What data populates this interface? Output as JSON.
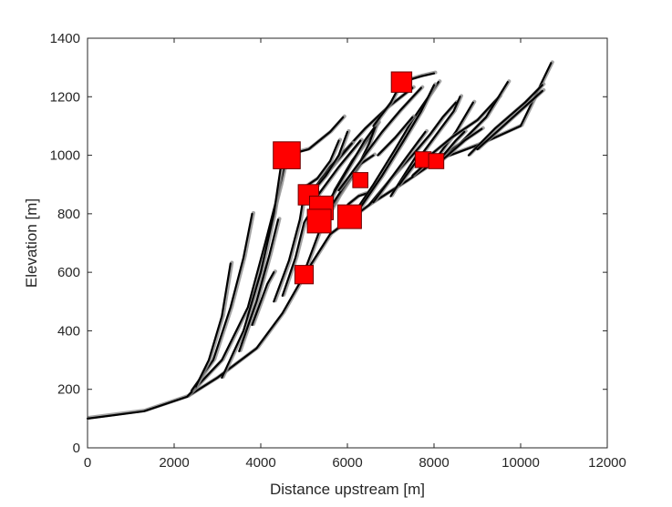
{
  "chart_data": {
    "type": "line",
    "title": "",
    "xlabel": "Distance upstream [m]",
    "ylabel": "Elevation [m]",
    "xlim": [
      0,
      12000
    ],
    "ylim": [
      0,
      1400
    ],
    "xticks": [
      0,
      2000,
      4000,
      6000,
      8000,
      10000,
      12000
    ],
    "yticks": [
      0,
      200,
      400,
      600,
      800,
      1000,
      1200,
      1400
    ],
    "grid": false,
    "legend": "none",
    "colors": {
      "profile": "#000000",
      "profile_shadow": "#8c8c8c",
      "marker_fill": "#ff0000",
      "marker_edge": "#6e0000"
    },
    "series": [
      {
        "x": [
          0,
          1300,
          2300,
          3000,
          3900,
          4500,
          5000,
          5600,
          6500,
          7400,
          8100,
          9100,
          10000,
          10700
        ],
        "y": [
          100,
          125,
          175,
          240,
          340,
          460,
          590,
          730,
          830,
          915,
          985,
          1040,
          1100,
          1315
        ]
      },
      {
        "x": [
          2300,
          3100,
          3700,
          4100,
          4450,
          4600
        ],
        "y": [
          175,
          300,
          480,
          700,
          900,
          1000
        ]
      },
      {
        "x": [
          4600,
          5100,
          5600,
          5900
        ],
        "y": [
          1000,
          1020,
          1080,
          1130
        ]
      },
      {
        "x": [
          2400,
          2900,
          3300,
          3600,
          3800
        ],
        "y": [
          195,
          300,
          480,
          650,
          800
        ]
      },
      {
        "x": [
          2500,
          2800,
          3100,
          3300
        ],
        "y": [
          210,
          300,
          450,
          630
        ]
      },
      {
        "x": [
          3100,
          3600,
          4000,
          4300,
          4500
        ],
        "y": [
          240,
          400,
          600,
          800,
          1000
        ]
      },
      {
        "x": [
          3500,
          3900,
          4200,
          4400
        ],
        "y": [
          330,
          500,
          660,
          780
        ]
      },
      {
        "x": [
          3800,
          4150,
          4300
        ],
        "y": [
          420,
          560,
          600
        ]
      },
      {
        "x": [
          4300,
          4650,
          4900,
          5000
        ],
        "y": [
          500,
          640,
          780,
          870
        ]
      },
      {
        "x": [
          4500,
          4800,
          5000,
          5200,
          5300
        ],
        "y": [
          520,
          650,
          770,
          820,
          860
        ]
      },
      {
        "x": [
          5000,
          5300,
          5700,
          6100,
          6600
        ],
        "y": [
          600,
          720,
          880,
          980,
          1080
        ]
      },
      {
        "x": [
          5300,
          5600,
          6000,
          6400,
          6700
        ],
        "y": [
          760,
          850,
          950,
          1050,
          1110
        ]
      },
      {
        "x": [
          5500,
          5800,
          6200,
          6500,
          6700
        ],
        "y": [
          780,
          860,
          950,
          1040,
          1120
        ]
      },
      {
        "x": [
          5600,
          5950,
          6300,
          6600
        ],
        "y": [
          820,
          900,
          970,
          1000
        ]
      },
      {
        "x": [
          6000,
          6250,
          6450
        ],
        "y": [
          830,
          860,
          870
        ]
      },
      {
        "x": [
          6100,
          6600,
          7100,
          7500,
          8100
        ],
        "y": [
          790,
          900,
          1020,
          1120,
          1250
        ]
      },
      {
        "x": [
          6200,
          6800,
          7300,
          7700,
          8000
        ],
        "y": [
          800,
          930,
          1050,
          1150,
          1240
        ]
      },
      {
        "x": [
          6500,
          7000,
          7500,
          7900,
          8200,
          8500
        ],
        "y": [
          830,
          920,
          1000,
          1070,
          1130,
          1180
        ]
      },
      {
        "x": [
          6600,
          7200,
          7600,
          7800
        ],
        "y": [
          840,
          960,
          1040,
          1080
        ]
      },
      {
        "x": [
          7000,
          7300,
          7600
        ],
        "y": [
          860,
          930,
          1000
        ]
      },
      {
        "x": [
          7200,
          7600,
          7900,
          8200,
          8450,
          8600
        ],
        "y": [
          900,
          980,
          1040,
          1100,
          1150,
          1200
        ]
      },
      {
        "x": [
          7500,
          7800,
          8100,
          8500,
          8900
        ],
        "y": [
          930,
          970,
          1000,
          1080,
          1180
        ]
      },
      {
        "x": [
          7750,
          8400,
          9000,
          9500
        ],
        "y": [
          980,
          1060,
          1120,
          1200
        ]
      },
      {
        "x": [
          8000,
          8600,
          9200,
          9700
        ],
        "y": [
          975,
          1040,
          1130,
          1250
        ]
      },
      {
        "x": [
          8100,
          8500,
          8700
        ],
        "y": [
          980,
          1050,
          1080
        ]
      },
      {
        "x": [
          8200,
          8700,
          9100
        ],
        "y": [
          985,
          1050,
          1090
        ]
      },
      {
        "x": [
          8800,
          9400,
          10100,
          10500
        ],
        "y": [
          1000,
          1090,
          1180,
          1240
        ]
      },
      {
        "x": [
          9000,
          9600,
          10500
        ],
        "y": [
          1020,
          1100,
          1220
        ]
      },
      {
        "x": [
          5200,
          5600,
          5900,
          6400,
          6900,
          7500
        ],
        "y": [
          880,
          960,
          1010,
          1090,
          1160,
          1230
        ]
      },
      {
        "x": [
          5400,
          5700,
          6100
        ],
        "y": [
          920,
          970,
          1040
        ]
      },
      {
        "x": [
          7250,
          7700,
          8000
        ],
        "y": [
          1250,
          1270,
          1280
        ]
      },
      {
        "x": [
          6600,
          7000,
          7250
        ],
        "y": [
          1100,
          1180,
          1250
        ]
      },
      {
        "x": [
          4900,
          5300,
          5600,
          5800
        ],
        "y": [
          880,
          920,
          980,
          1050
        ]
      },
      {
        "x": [
          5100,
          5500,
          5800,
          6000
        ],
        "y": [
          860,
          930,
          1000,
          1080
        ]
      },
      {
        "x": [
          5250,
          5800,
          6300
        ],
        "y": [
          850,
          960,
          1050
        ]
      },
      {
        "x": [
          5800,
          6300,
          6800,
          7200,
          7700
        ],
        "y": [
          880,
          980,
          1080,
          1150,
          1230
        ]
      },
      {
        "x": [
          6700,
          7100,
          7500
        ],
        "y": [
          1000,
          1060,
          1130
        ]
      }
    ],
    "markers": [
      {
        "x": 4600,
        "y": 1000,
        "size": 3
      },
      {
        "x": 7250,
        "y": 1250,
        "size": 2
      },
      {
        "x": 5100,
        "y": 865,
        "size": 2
      },
      {
        "x": 5400,
        "y": 820,
        "size": 2.5
      },
      {
        "x": 5350,
        "y": 775,
        "size": 2.5
      },
      {
        "x": 6050,
        "y": 790,
        "size": 2.5
      },
      {
        "x": 6300,
        "y": 915,
        "size": 1.2
      },
      {
        "x": 7750,
        "y": 985,
        "size": 1.3
      },
      {
        "x": 8050,
        "y": 980,
        "size": 1.2
      },
      {
        "x": 5000,
        "y": 592,
        "size": 1.7
      }
    ]
  }
}
